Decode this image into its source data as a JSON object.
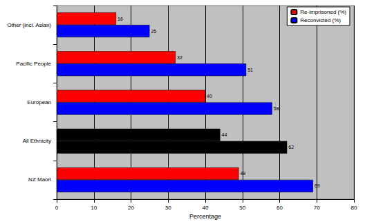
{
  "chart_data": {
    "type": "bar",
    "orientation": "horizontal",
    "categories": [
      "Other (incl. Asian)",
      "Pacific People",
      "European",
      "All Ethnicity",
      "NZ Maori"
    ],
    "series": [
      {
        "name": "Re-imprisoned (%)",
        "color": "#ff0000",
        "colors": [
          "#ff0000",
          "#ff0000",
          "#ff0000",
          "#000000",
          "#ff0000"
        ],
        "values": [
          16,
          32,
          40,
          44,
          49
        ]
      },
      {
        "name": "Reconvicted (%)",
        "color": "#0000ff",
        "colors": [
          "#0000ff",
          "#0000ff",
          "#0000ff",
          "#000000",
          "#0000ff"
        ],
        "values": [
          25,
          51,
          58,
          62,
          69
        ]
      }
    ],
    "xlabel": "Percentage",
    "xlim": [
      0,
      80
    ],
    "xticks": [
      0,
      10,
      20,
      30,
      40,
      50,
      60,
      70,
      80
    ],
    "grid": true,
    "legend": "upper right",
    "data_labels": true
  }
}
